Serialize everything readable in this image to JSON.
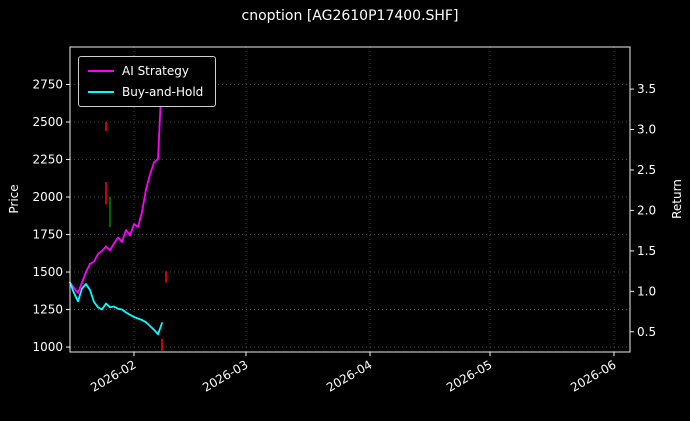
{
  "chart_data": {
    "type": "line",
    "title": "cnoption [AG2610P17400.SHF]",
    "xlabel": "",
    "ylabel": "Price",
    "y2label": "Return",
    "grid": true,
    "legend_position": "upper-left",
    "background": "#000000",
    "xlim": [
      "2026-01-16",
      "2026-06-05"
    ],
    "ylim": [
      967,
      3000
    ],
    "y2lim": [
      0.25,
      4.02
    ],
    "x_ticks": [
      {
        "label": "2026-02",
        "date": "2026-02-01"
      },
      {
        "label": "2026-03",
        "date": "2026-03-01"
      },
      {
        "label": "2026-04",
        "date": "2026-04-01"
      },
      {
        "label": "2026-05",
        "date": "2026-05-01"
      },
      {
        "label": "2026-06",
        "date": "2026-06-01"
      }
    ],
    "y_ticks": [
      1000,
      1250,
      1500,
      1750,
      2000,
      2250,
      2500,
      2750
    ],
    "y2_ticks": [
      "0.5",
      "1.0",
      "1.5",
      "2.0",
      "2.5",
      "3.0",
      "3.5"
    ],
    "x": [
      "2026-01-16",
      "2026-01-17",
      "2026-01-18",
      "2026-01-19",
      "2026-01-20",
      "2026-01-21",
      "2026-01-22",
      "2026-01-23",
      "2026-01-24",
      "2026-01-25",
      "2026-01-26",
      "2026-01-27",
      "2026-01-28",
      "2026-01-29",
      "2026-01-30",
      "2026-01-31",
      "2026-02-01",
      "2026-02-02",
      "2026-02-03",
      "2026-02-04",
      "2026-02-05",
      "2026-02-06",
      "2026-02-07",
      "2026-02-08"
    ],
    "series": [
      {
        "name": "AI Strategy",
        "color": "#ff00ff",
        "values": [
          1430,
          1395,
          1360,
          1430,
          1500,
          1555,
          1570,
          1620,
          1640,
          1670,
          1645,
          1690,
          1730,
          1700,
          1780,
          1745,
          1820,
          1800,
          1900,
          2050,
          2150,
          2230,
          2255,
          2820
        ]
      },
      {
        "name": "Buy-and-Hold",
        "color": "#00ffff",
        "values": [
          1430,
          1360,
          1305,
          1390,
          1420,
          1380,
          1300,
          1265,
          1250,
          1290,
          1265,
          1270,
          1255,
          1250,
          1230,
          1215,
          1200,
          1190,
          1180,
          1165,
          1140,
          1115,
          1085,
          1160
        ]
      }
    ],
    "markers": [
      {
        "date": "2026-01-25",
        "from": 2440,
        "to": 2500,
        "color": "#ff0000"
      },
      {
        "date": "2026-01-25",
        "from": 1950,
        "to": 2100,
        "color": "#ff0000"
      },
      {
        "date": "2026-01-26",
        "from": 1800,
        "to": 2000,
        "color": "#008000"
      },
      {
        "date": "2026-02-09",
        "from": 1430,
        "to": 1505,
        "color": "#ff0000"
      },
      {
        "date": "2026-02-08",
        "from": 975,
        "to": 1055,
        "color": "#ff0000"
      }
    ]
  },
  "colors": {
    "background": "#000000",
    "text": "#ffffff",
    "grid": "#585858",
    "spine": "#ececec",
    "ai_strategy": "#ff00ff",
    "buy_and_hold": "#00ffff",
    "marker_red": "#ff0000",
    "marker_green": "#008000"
  }
}
